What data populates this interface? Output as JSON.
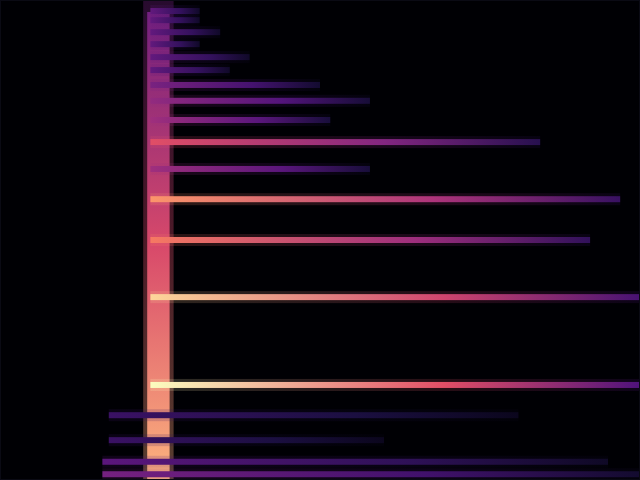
{
  "chart_data": {
    "type": "spectrogram",
    "xlim": [
      0,
      100
    ],
    "ylim": [
      0,
      100
    ],
    "tick_labels": false,
    "onset": {
      "start": 23,
      "end": 26.5,
      "intensity": 0.85
    },
    "partials": [
      {
        "frequency": 19.8,
        "start": 23.5,
        "end": 100,
        "intensity": 1.0
      },
      {
        "frequency": 38.1,
        "start": 23.5,
        "end": 100,
        "intensity": 0.92
      },
      {
        "frequency": 50,
        "start": 23.5,
        "end": 92.2,
        "intensity": 0.72
      },
      {
        "frequency": 58.5,
        "start": 23.5,
        "end": 96.9,
        "intensity": 0.78
      },
      {
        "frequency": 64.8,
        "start": 23.5,
        "end": 57.8,
        "intensity": 0.45
      },
      {
        "frequency": 70.4,
        "start": 23.5,
        "end": 84.4,
        "intensity": 0.62
      },
      {
        "frequency": 75,
        "start": 23.5,
        "end": 51.6,
        "intensity": 0.45
      },
      {
        "frequency": 79,
        "start": 23.5,
        "end": 57.8,
        "intensity": 0.42
      },
      {
        "frequency": 82.3,
        "start": 23.5,
        "end": 50,
        "intensity": 0.36
      },
      {
        "frequency": 85.4,
        "start": 23.5,
        "end": 35.9,
        "intensity": 0.3
      },
      {
        "frequency": 88.1,
        "start": 23.5,
        "end": 39,
        "intensity": 0.3
      },
      {
        "frequency": 90.8,
        "start": 23.5,
        "end": 31.2,
        "intensity": 0.3
      },
      {
        "frequency": 93.3,
        "start": 23.5,
        "end": 34.4,
        "intensity": 0.3
      },
      {
        "frequency": 95.8,
        "start": 23.5,
        "end": 31.2,
        "intensity": 0.3
      },
      {
        "frequency": 97.7,
        "start": 23.5,
        "end": 31.2,
        "intensity": 0.3
      },
      {
        "frequency": 13.5,
        "start": 17,
        "end": 81,
        "intensity": 0.2
      },
      {
        "frequency": 8.3,
        "start": 17,
        "end": 60,
        "intensity": 0.2
      },
      {
        "frequency": 3.8,
        "start": 16,
        "end": 95,
        "intensity": 0.28
      },
      {
        "frequency": 1.2,
        "start": 16,
        "end": 100,
        "intensity": 0.35
      }
    ]
  }
}
